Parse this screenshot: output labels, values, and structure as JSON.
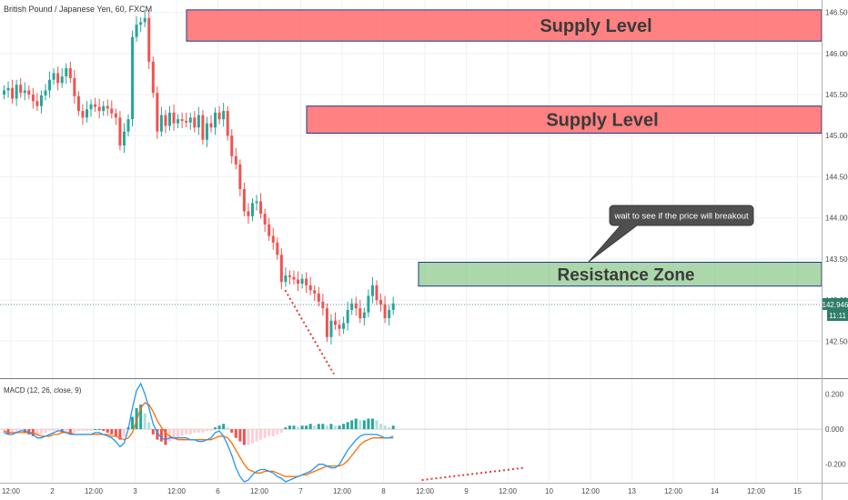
{
  "symbol_title": "British Pound / Japanese Yen, 60, FXCM",
  "colors": {
    "bull": "#26a69a",
    "bear": "#ef5350",
    "supply_fill": "#ff6b6b",
    "resistance_fill": "#8fc98f",
    "macd_line": "#2196f3",
    "signal_line": "#ff6d00",
    "dotted_trend": "#e53935",
    "price_tag": "#2e7d6b"
  },
  "chart_data": [
    {
      "type": "candlestick",
      "title": "British Pound / Japanese Yen, 60, FXCM",
      "ylim": [
        142.05,
        146.65
      ],
      "y_ticks": [
        "146.500",
        "146.000",
        "145.500",
        "145.000",
        "144.500",
        "144.000",
        "143.500",
        "143.000",
        "142.500"
      ],
      "x_ticks": [
        "12:00",
        "2",
        "12:00",
        "3",
        "12:00",
        "6",
        "12:00",
        "7",
        "12:00",
        "8",
        "12:00",
        "9",
        "12:00",
        "10",
        "12:00",
        "13",
        "12:00",
        "14",
        "12:00",
        "15"
      ],
      "current_price": "142.946",
      "countdown": "11:11",
      "ohlc_close": [
        145.55,
        145.58,
        145.45,
        145.62,
        145.52,
        145.55,
        145.5,
        145.42,
        145.36,
        145.49,
        145.55,
        145.68,
        145.76,
        145.64,
        145.72,
        145.82,
        145.7,
        145.48,
        145.3,
        145.22,
        145.32,
        145.38,
        145.35,
        145.3,
        145.36,
        145.33,
        145.27,
        145.22,
        144.88,
        145.05,
        145.2,
        146.2,
        146.35,
        146.38,
        146.43,
        145.9,
        145.52,
        145.05,
        145.25,
        145.12,
        145.28,
        145.15,
        145.2,
        145.18,
        145.16,
        145.22,
        145.1,
        145.25,
        144.95,
        145.15,
        145.1,
        145.28,
        145.2,
        145.3,
        145.0,
        144.75,
        144.65,
        144.35,
        144.08,
        144.02,
        144.18,
        144.2,
        144.05,
        143.92,
        143.78,
        143.7,
        143.55,
        143.22,
        143.3,
        143.28,
        143.25,
        143.2,
        143.26,
        143.18,
        143.12,
        143.08,
        142.98,
        142.9,
        142.55,
        142.75,
        142.7,
        142.65,
        142.72,
        142.88,
        142.96,
        142.9,
        142.78,
        142.85,
        143.05,
        143.18,
        143.0,
        142.95,
        142.78,
        142.88,
        142.96
      ],
      "series": [
        {
          "name": "",
          "kind": "supply_zone",
          "label": "Supply Level",
          "range": [
            146.15,
            146.53
          ]
        },
        {
          "name": "",
          "kind": "supply_zone",
          "label": "Supply Level",
          "range": [
            145.03,
            145.36
          ]
        },
        {
          "name": "",
          "kind": "resistance_zone",
          "label": "Resistance Zone",
          "range": [
            143.17,
            143.46
          ]
        }
      ],
      "annotations": [
        "Supply Level",
        "Supply Level",
        "Resistance Zone",
        "wait to see if the price will breakout"
      ]
    },
    {
      "type": "bar",
      "title": "MACD (12, 26, close, 9)",
      "ylim": [
        -0.3,
        0.28
      ],
      "y_ticks": [
        "0.200",
        "0.000",
        "-0.200"
      ],
      "histogram": [
        -0.02,
        -0.03,
        -0.03,
        -0.02,
        -0.01,
        -0.02,
        -0.03,
        -0.04,
        -0.04,
        -0.03,
        -0.02,
        -0.01,
        -0.01,
        -0.01,
        -0.02,
        -0.02,
        -0.03,
        -0.02,
        -0.01,
        -0.01,
        -0.01,
        -0.01,
        0.0,
        0.0,
        -0.01,
        -0.02,
        -0.03,
        -0.04,
        -0.06,
        -0.04,
        0.01,
        0.07,
        0.12,
        0.14,
        0.09,
        0.04,
        -0.03,
        -0.06,
        -0.07,
        -0.09,
        -0.07,
        -0.06,
        -0.05,
        -0.04,
        -0.03,
        -0.03,
        -0.02,
        -0.02,
        -0.02,
        -0.01,
        -0.01,
        0.01,
        0.02,
        0.03,
        0.01,
        -0.02,
        -0.05,
        -0.07,
        -0.09,
        -0.09,
        -0.08,
        -0.07,
        -0.06,
        -0.05,
        -0.04,
        -0.04,
        -0.03,
        -0.02,
        0.01,
        0.02,
        0.02,
        0.01,
        0.02,
        0.02,
        0.03,
        0.02,
        0.03,
        0.03,
        0.02,
        0.03,
        0.02,
        0.02,
        0.03,
        0.04,
        0.05,
        0.06,
        0.05,
        0.05,
        0.06,
        0.06,
        0.05,
        0.03,
        0.02,
        0.01,
        0.02
      ],
      "macd_line": [
        -0.02,
        -0.03,
        -0.03,
        -0.02,
        -0.01,
        -0.01,
        -0.02,
        -0.03,
        -0.05,
        -0.05,
        -0.04,
        -0.03,
        -0.02,
        -0.01,
        -0.01,
        -0.02,
        -0.03,
        -0.03,
        -0.03,
        -0.03,
        -0.03,
        -0.03,
        -0.02,
        -0.02,
        -0.03,
        -0.04,
        -0.05,
        -0.07,
        -0.1,
        -0.08,
        0.0,
        0.12,
        0.22,
        0.26,
        0.2,
        0.12,
        0.03,
        -0.02,
        -0.05,
        -0.06,
        -0.05,
        -0.05,
        -0.05,
        -0.05,
        -0.05,
        -0.06,
        -0.06,
        -0.07,
        -0.07,
        -0.06,
        -0.05,
        -0.02,
        -0.01,
        -0.04,
        -0.09,
        -0.15,
        -0.22,
        -0.27,
        -0.3,
        -0.29,
        -0.26,
        -0.24,
        -0.23,
        -0.23,
        -0.24,
        -0.25,
        -0.27,
        -0.28,
        -0.3,
        -0.29,
        -0.28,
        -0.27,
        -0.26,
        -0.25,
        -0.24,
        -0.22,
        -0.2,
        -0.2,
        -0.21,
        -0.22,
        -0.22,
        -0.2,
        -0.16,
        -0.12,
        -0.09,
        -0.06,
        -0.04,
        -0.03,
        -0.03,
        -0.03,
        -0.03,
        -0.04,
        -0.05,
        -0.05,
        -0.04
      ],
      "signal_line": [
        -0.01,
        -0.02,
        -0.02,
        -0.02,
        -0.02,
        -0.02,
        -0.02,
        -0.02,
        -0.03,
        -0.04,
        -0.04,
        -0.04,
        -0.03,
        -0.03,
        -0.02,
        -0.02,
        -0.02,
        -0.03,
        -0.03,
        -0.03,
        -0.03,
        -0.03,
        -0.03,
        -0.03,
        -0.03,
        -0.03,
        -0.04,
        -0.04,
        -0.05,
        -0.06,
        -0.05,
        -0.02,
        0.05,
        0.12,
        0.15,
        0.14,
        0.1,
        0.05,
        0.01,
        -0.02,
        -0.04,
        -0.05,
        -0.06,
        -0.06,
        -0.06,
        -0.06,
        -0.06,
        -0.06,
        -0.06,
        -0.06,
        -0.06,
        -0.05,
        -0.04,
        -0.04,
        -0.05,
        -0.08,
        -0.12,
        -0.16,
        -0.2,
        -0.23,
        -0.24,
        -0.25,
        -0.25,
        -0.24,
        -0.24,
        -0.24,
        -0.25,
        -0.26,
        -0.27,
        -0.27,
        -0.27,
        -0.27,
        -0.26,
        -0.26,
        -0.25,
        -0.24,
        -0.23,
        -0.22,
        -0.21,
        -0.21,
        -0.21,
        -0.21,
        -0.2,
        -0.18,
        -0.15,
        -0.12,
        -0.09,
        -0.07,
        -0.06,
        -0.05,
        -0.05,
        -0.05,
        -0.05,
        -0.05,
        -0.05
      ]
    }
  ]
}
